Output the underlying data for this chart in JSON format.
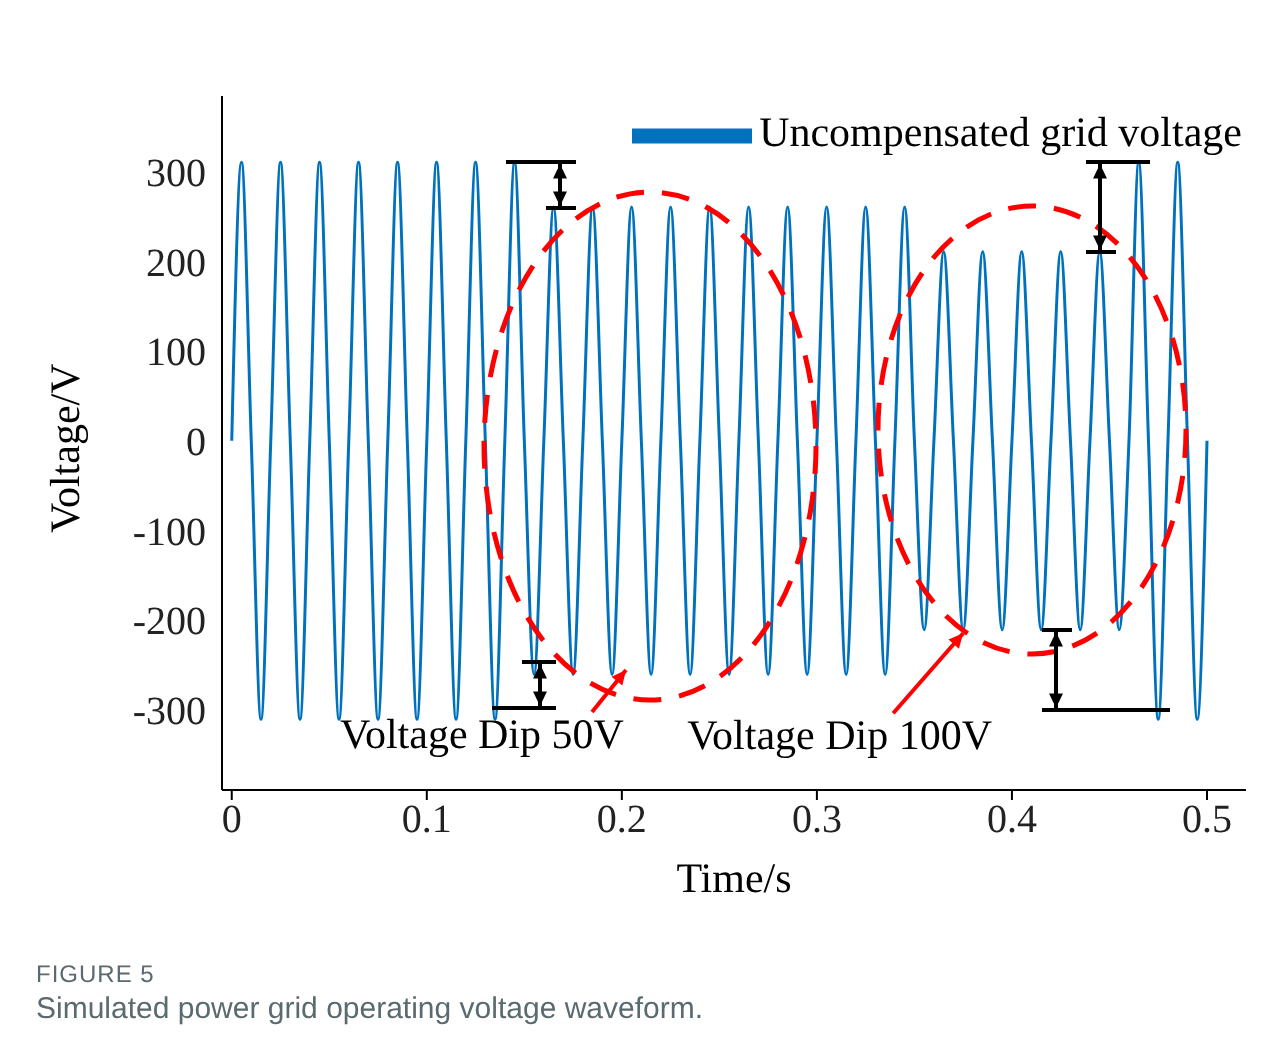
{
  "chart_data": {
    "type": "line",
    "xlabel": "Time/s",
    "ylabel": "Voltage/V",
    "x": [
      0,
      0.005,
      0.01,
      0.015,
      0.02,
      0.025,
      0.03,
      0.035,
      0.04,
      0.045,
      0.05,
      0.055,
      0.06,
      0.065,
      0.07,
      0.075,
      0.08,
      0.085,
      0.09,
      0.095,
      0.1,
      0.105,
      0.11,
      0.115,
      0.12,
      0.125,
      0.13,
      0.135,
      0.14,
      0.145,
      0.15,
      0.155,
      0.16,
      0.165,
      0.17,
      0.175,
      0.18,
      0.185,
      0.19,
      0.195,
      0.2,
      0.205,
      0.21,
      0.215,
      0.22,
      0.225,
      0.23,
      0.235,
      0.24,
      0.245,
      0.25,
      0.255,
      0.26,
      0.265,
      0.27,
      0.275,
      0.28,
      0.285,
      0.29,
      0.295,
      0.3,
      0.305,
      0.31,
      0.315,
      0.32,
      0.325,
      0.33,
      0.335,
      0.34,
      0.345,
      0.35,
      0.355,
      0.36,
      0.365,
      0.37,
      0.375,
      0.38,
      0.385,
      0.39,
      0.395,
      0.4,
      0.405,
      0.41,
      0.415,
      0.42,
      0.425,
      0.43,
      0.435,
      0.44,
      0.445,
      0.45,
      0.455,
      0.46,
      0.465,
      0.47,
      0.475,
      0.48,
      0.485,
      0.49,
      0.495,
      0.5
    ],
    "series": [
      {
        "name": "Uncompensated grid voltage",
        "color": "#0072bd",
        "values": [
          0,
          311,
          0,
          -311,
          0,
          311,
          0,
          -311,
          0,
          311,
          0,
          -311,
          0,
          311,
          0,
          -311,
          0,
          311,
          0,
          -311,
          0,
          311,
          0,
          -311,
          0,
          311,
          0,
          -311,
          0,
          311,
          0,
          -261,
          0,
          261,
          0,
          -261,
          0,
          261,
          0,
          -261,
          0,
          261,
          0,
          -261,
          0,
          261,
          0,
          -261,
          0,
          261,
          0,
          -261,
          0,
          261,
          0,
          -261,
          0,
          261,
          0,
          -261,
          0,
          261,
          0,
          -261,
          0,
          261,
          0,
          -261,
          0,
          261,
          0,
          -211,
          0,
          211,
          0,
          -211,
          0,
          211,
          0,
          -211,
          0,
          211,
          0,
          -211,
          0,
          211,
          0,
          -211,
          0,
          211,
          0,
          -211,
          0,
          311,
          0,
          -311,
          0,
          311,
          0,
          -311,
          0
        ]
      }
    ],
    "xlim": [
      -0.005,
      0.52
    ],
    "xticks": [
      0,
      0.1,
      0.2,
      0.3,
      0.4,
      0.5
    ],
    "ylim": [
      -390,
      385
    ],
    "yticks": [
      -300,
      -200,
      -100,
      0,
      100,
      200,
      300
    ],
    "grid": false,
    "legend": "top right",
    "annotations": [
      "Voltage Dip 50V",
      {
        "text": "Voltage Dip 100V",
        "x": 0.375,
        "y": -215
      },
      "FIGURE 5",
      "Simulated power grid operating voltage waveform."
    ]
  }
}
